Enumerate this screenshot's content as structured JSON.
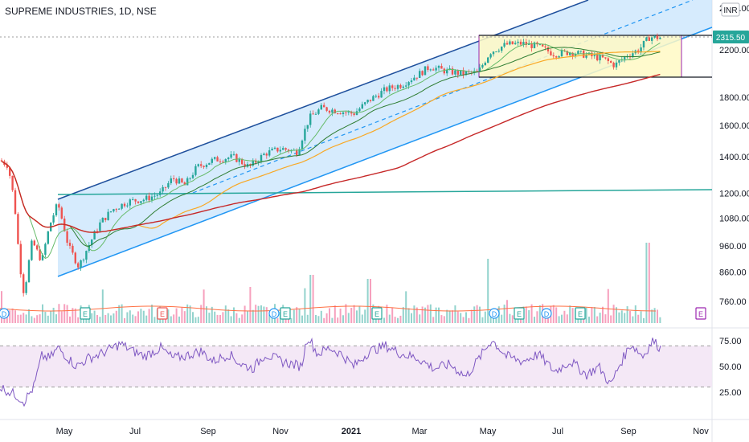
{
  "chart_data": {
    "type": "candlestick",
    "title": "SUPREME INDUSTRIES, 1D, NSE",
    "currency": "INR",
    "last_price": "2315.50",
    "price_axis_ticks": [
      "2200.00",
      "1800.00",
      "1600.00",
      "1400.00",
      "1200.00",
      "1080.00",
      "960.00",
      "860.00",
      "760.00"
    ],
    "price_axis_top_partial": "2600.00",
    "rsi_axis_ticks": [
      "75.00",
      "50.00",
      "25.00"
    ],
    "x_ticks": [
      "May",
      "Jul",
      "Sep",
      "Nov",
      "2021",
      "Mar",
      "May",
      "Jul",
      "Sep",
      "Nov"
    ],
    "approx_close_series": [
      {
        "date": "2020-04",
        "close": 1100
      },
      {
        "date": "2020-05",
        "close": 950
      },
      {
        "date": "2020-06",
        "close": 1150
      },
      {
        "date": "2020-07",
        "close": 1200
      },
      {
        "date": "2020-08",
        "close": 1300
      },
      {
        "date": "2020-09",
        "close": 1400
      },
      {
        "date": "2020-10",
        "close": 1450
      },
      {
        "date": "2020-11",
        "close": 1700
      },
      {
        "date": "2020-12",
        "close": 1750
      },
      {
        "date": "2021-01",
        "close": 1900
      },
      {
        "date": "2021-02",
        "close": 2000
      },
      {
        "date": "2021-03",
        "close": 2100
      },
      {
        "date": "2021-04",
        "close": 2050
      },
      {
        "date": "2021-05",
        "close": 2250
      },
      {
        "date": "2021-06",
        "close": 2250
      },
      {
        "date": "2021-07",
        "close": 2150
      },
      {
        "date": "2021-08",
        "close": 2100
      },
      {
        "date": "2021-09",
        "close": 2315
      }
    ],
    "horizontal_levels": [
      1200,
      2300,
      2050
    ],
    "event_markers": {
      "earnings": [
        "E",
        "E",
        "E",
        "E",
        "E",
        "E",
        "E",
        "E",
        "E"
      ],
      "dividends": [
        "D",
        "D",
        "D",
        "D"
      ]
    },
    "rsi_levels": [
      70,
      30
    ],
    "colors": {
      "up": "#26a69a",
      "down": "#ef5350",
      "channel_fill": "#bbdefb",
      "channel_line": "#2196f3",
      "box_fill": "#fff9c4",
      "rsi_fill": "#f3e5f5",
      "rsi_line": "#7e57c2",
      "ma_long": "#c62828",
      "ma_mid": "#f9a825",
      "support_line": "#26a69a",
      "price_label": "#26a69a"
    }
  }
}
